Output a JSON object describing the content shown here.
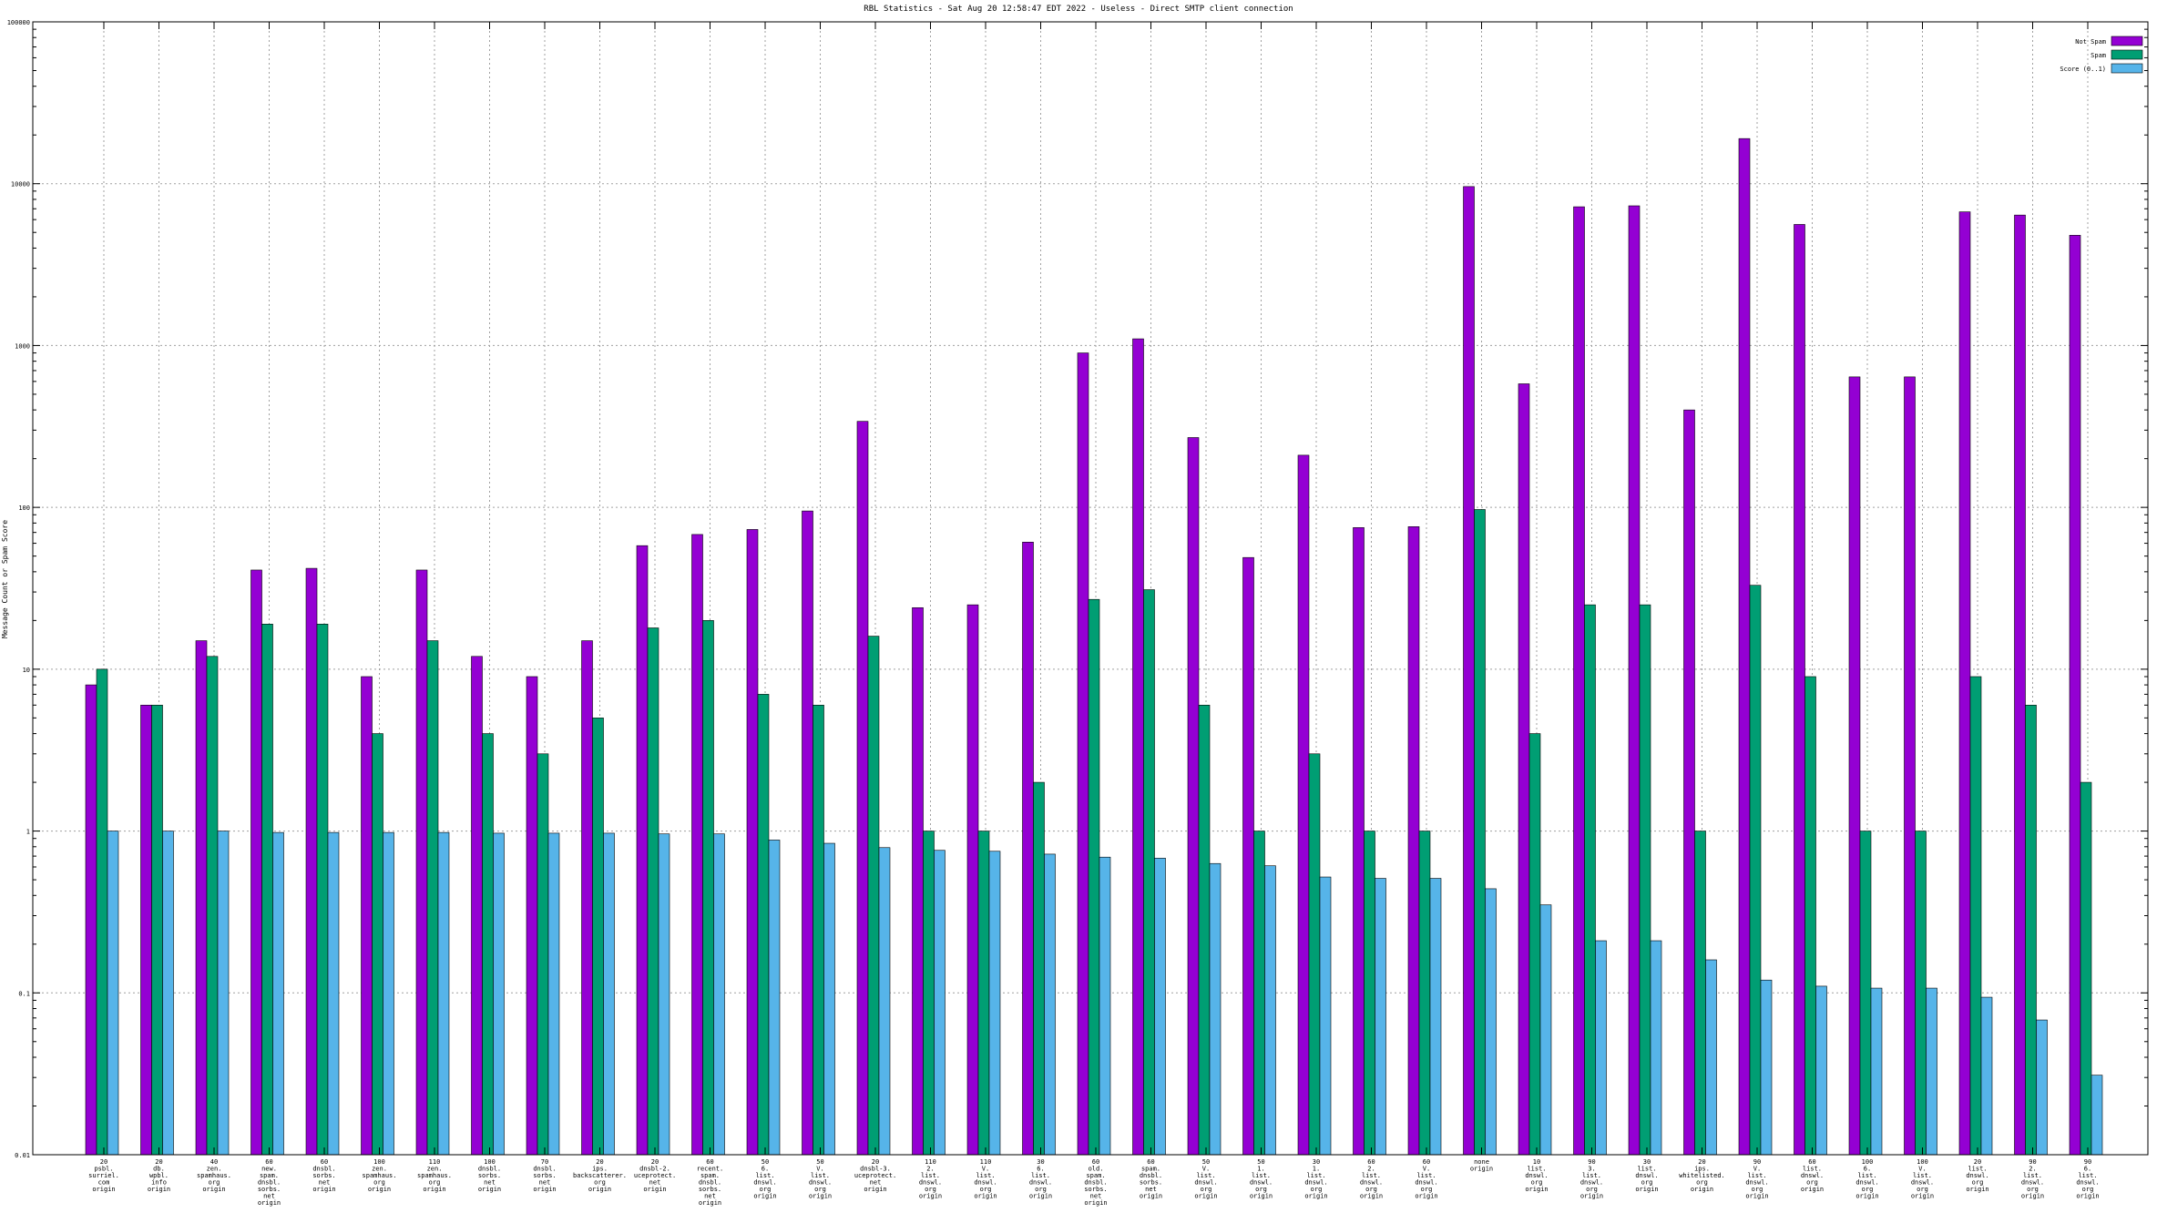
{
  "chart_data": {
    "type": "bar",
    "title": "RBL Statistics - Sat Aug 20 12:58:47 EDT 2022 - Useless - Direct SMTP client connection",
    "ylabel": "Message Count or Spam Score",
    "xlabel": "",
    "yscale": "log",
    "ylim": [
      0.01,
      100000
    ],
    "yticks": [
      "0.01",
      "0.1",
      "1",
      "10",
      "100",
      "1000",
      "10000",
      "100000"
    ],
    "grid": true,
    "legend_position": "top-right",
    "categories": [
      [
        "20",
        "psbl.",
        "surriel.",
        "com",
        "origin"
      ],
      [
        "20",
        "db.",
        "wpbl.",
        "info",
        "origin"
      ],
      [
        "40",
        "zen.",
        "spamhaus.",
        "org",
        "origin"
      ],
      [
        "60",
        "new.",
        "spam.",
        "dnsbl.",
        "sorbs.",
        "net",
        "origin"
      ],
      [
        "60",
        "dnsbl.",
        "sorbs.",
        "net",
        "origin"
      ],
      [
        "100",
        "zen.",
        "spamhaus.",
        "org",
        "origin"
      ],
      [
        "110",
        "zen.",
        "spamhaus.",
        "org",
        "origin"
      ],
      [
        "100",
        "dnsbl.",
        "sorbs.",
        "net",
        "origin"
      ],
      [
        "70",
        "dnsbl.",
        "sorbs.",
        "net",
        "origin"
      ],
      [
        "20",
        "ips.",
        "backscatterer.",
        "org",
        "origin"
      ],
      [
        "20",
        "dnsbl-2.",
        "uceprotect.",
        "net",
        "origin"
      ],
      [
        "60",
        "recent.",
        "spam.",
        "dnsbl.",
        "sorbs.",
        "net",
        "origin"
      ],
      [
        "50",
        "6.",
        "list.",
        "dnswl.",
        "org",
        "origin"
      ],
      [
        "50",
        "V.",
        "list.",
        "dnswl.",
        "org",
        "origin"
      ],
      [
        "20",
        "dnsbl-3.",
        "uceprotect.",
        "net",
        "origin"
      ],
      [
        "110",
        "2.",
        "list.",
        "dnswl.",
        "org",
        "origin"
      ],
      [
        "110",
        "V.",
        "list.",
        "dnswl.",
        "org",
        "origin"
      ],
      [
        "30",
        "6.",
        "list.",
        "dnswl.",
        "org",
        "origin"
      ],
      [
        "60",
        "old.",
        "spam.",
        "dnsbl.",
        "sorbs.",
        "net",
        "origin"
      ],
      [
        "60",
        "spam.",
        "dnsbl.",
        "sorbs.",
        "net",
        "origin"
      ],
      [
        "50",
        "V.",
        "list.",
        "dnswl.",
        "org",
        "origin"
      ],
      [
        "50",
        "1.",
        "list.",
        "dnswl.",
        "org",
        "origin"
      ],
      [
        "30",
        "1.",
        "list.",
        "dnswl.",
        "org",
        "origin"
      ],
      [
        "60",
        "2.",
        "list.",
        "dnswl.",
        "org",
        "origin"
      ],
      [
        "60",
        "V.",
        "list.",
        "dnswl.",
        "org",
        "origin"
      ],
      [
        "none",
        "origin"
      ],
      [
        "10",
        "list.",
        "dnswl.",
        "org",
        "origin"
      ],
      [
        "90",
        "3.",
        "list.",
        "dnswl.",
        "org",
        "origin"
      ],
      [
        "30",
        "list.",
        "dnswl.",
        "org",
        "origin"
      ],
      [
        "20",
        "ips.",
        "whitelisted.",
        "org",
        "origin"
      ],
      [
        "90",
        "V.",
        "list.",
        "dnswl.",
        "org",
        "origin"
      ],
      [
        "60",
        "list.",
        "dnswl.",
        "org",
        "origin"
      ],
      [
        "100",
        "6.",
        "list.",
        "dnswl.",
        "org",
        "origin"
      ],
      [
        "100",
        "V.",
        "list.",
        "dnswl.",
        "org",
        "origin"
      ],
      [
        "20",
        "list.",
        "dnswl.",
        "org",
        "origin"
      ],
      [
        "90",
        "2.",
        "list.",
        "dnswl.",
        "org",
        "origin"
      ],
      [
        "90",
        "6.",
        "list.",
        "dnswl.",
        "org",
        "origin"
      ]
    ],
    "series": [
      {
        "name": "Not Spam",
        "color": "#9400d3",
        "values": [
          8,
          6,
          15,
          41,
          42,
          9,
          41,
          12,
          9,
          15,
          58,
          68,
          73,
          95,
          340,
          24,
          25,
          61,
          900,
          1100,
          270,
          49,
          210,
          75,
          76,
          9600,
          580,
          7200,
          7300,
          400,
          19000,
          5600,
          640,
          640,
          6700,
          6400,
          4800
        ]
      },
      {
        "name": "Spam",
        "color": "#009e73",
        "values": [
          10,
          6,
          12,
          19,
          19,
          4,
          15,
          4,
          3,
          5,
          18,
          20,
          7,
          6,
          16,
          1,
          1,
          2,
          27,
          31,
          6,
          1,
          3,
          1,
          1,
          97,
          4,
          25,
          25,
          1,
          33,
          9,
          1,
          1,
          9,
          6,
          2
        ]
      },
      {
        "name": "Score (0..1)",
        "color": "#56b4e9",
        "values": [
          1.0,
          1.0,
          1.0,
          0.98,
          0.98,
          0.98,
          0.98,
          0.97,
          0.97,
          0.97,
          0.96,
          0.96,
          0.88,
          0.84,
          0.79,
          0.76,
          0.75,
          0.72,
          0.69,
          0.68,
          0.63,
          0.61,
          0.52,
          0.51,
          0.51,
          0.44,
          0.35,
          0.21,
          0.21,
          0.16,
          0.12,
          0.11,
          0.107,
          0.107,
          0.094,
          0.068,
          0.031
        ]
      }
    ]
  }
}
